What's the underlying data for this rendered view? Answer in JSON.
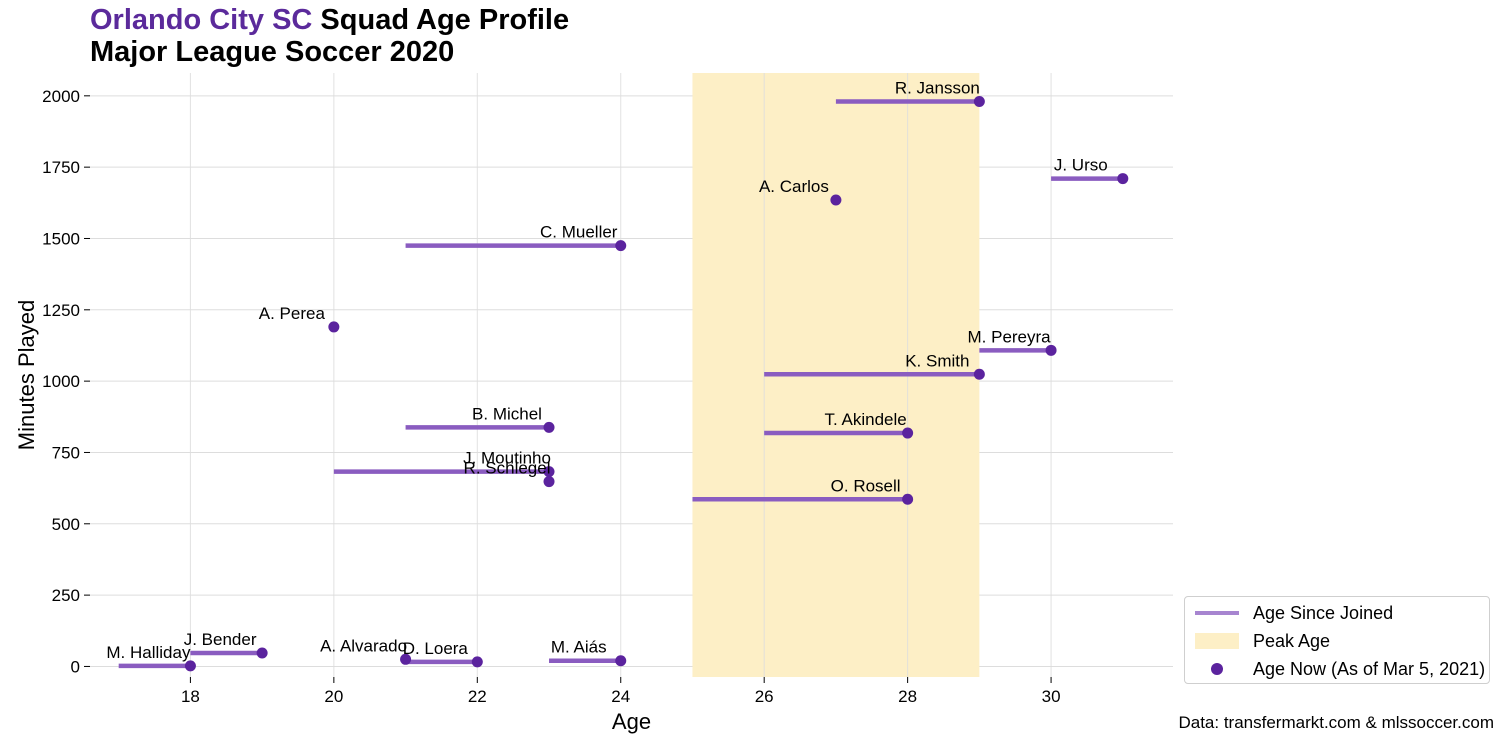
{
  "header": {
    "club": "Orlando City SC",
    "title_rest": " Squad Age Profile",
    "subtitle": "Major League Soccer 2020"
  },
  "source": "Data: transfermarkt.com & mlssoccer.com",
  "colors": {
    "club": "#5b2a9b",
    "dot": "#5b239e",
    "line": "#8a5cc0",
    "peak": "#fdefc6",
    "grid": "#dddddd"
  },
  "legend": {
    "line_label": "Age Since Joined",
    "peak_label": "Peak Age",
    "dot_label": "Age Now (As of Mar 5, 2021)"
  },
  "chart_data": {
    "type": "scatter",
    "xlabel": "Age",
    "ylabel": "Minutes Played",
    "xlim": [
      16.6,
      31.7
    ],
    "ylim": [
      -37,
      2080
    ],
    "xticks": [
      18,
      20,
      22,
      24,
      26,
      28,
      30
    ],
    "yticks": [
      0,
      250,
      500,
      750,
      1000,
      1250,
      1500,
      1750,
      2000
    ],
    "grid": true,
    "legend_position": "outside-right-bottom",
    "peak_age_range": [
      25,
      29
    ],
    "players": [
      {
        "name": "R. Jansson",
        "joined_age": 27,
        "age_now": 29,
        "minutes": 1980
      },
      {
        "name": "J. Urso",
        "joined_age": 30,
        "age_now": 31,
        "minutes": 1710
      },
      {
        "name": "A. Carlos",
        "joined_age": 27,
        "age_now": 27,
        "minutes": 1635
      },
      {
        "name": "C. Mueller",
        "joined_age": 21,
        "age_now": 24,
        "minutes": 1475
      },
      {
        "name": "A. Perea",
        "joined_age": 20,
        "age_now": 20,
        "minutes": 1190
      },
      {
        "name": "M. Pereyra",
        "joined_age": 29,
        "age_now": 30,
        "minutes": 1108
      },
      {
        "name": "K. Smith",
        "joined_age": 26,
        "age_now": 29,
        "minutes": 1024
      },
      {
        "name": "B. Michel",
        "joined_age": 21,
        "age_now": 23,
        "minutes": 838
      },
      {
        "name": "T. Akindele",
        "joined_age": 26,
        "age_now": 28,
        "minutes": 818
      },
      {
        "name": "J. Moutinho",
        "joined_age": 20,
        "age_now": 23,
        "minutes": 683
      },
      {
        "name": "R. Schlegel",
        "joined_age": 23,
        "age_now": 23,
        "minutes": 648
      },
      {
        "name": "O. Rosell",
        "joined_age": 25,
        "age_now": 28,
        "minutes": 586
      },
      {
        "name": "J. Bender",
        "joined_age": 18,
        "age_now": 19,
        "minutes": 47
      },
      {
        "name": "M. Halliday",
        "joined_age": 17,
        "age_now": 18,
        "minutes": 2
      },
      {
        "name": "A. Alvarado",
        "joined_age": 21,
        "age_now": 21,
        "minutes": 25
      },
      {
        "name": "D. Loera",
        "joined_age": 21,
        "age_now": 22,
        "minutes": 16
      },
      {
        "name": "M. Aiás",
        "joined_age": 23,
        "age_now": 24,
        "minutes": 20
      }
    ]
  }
}
